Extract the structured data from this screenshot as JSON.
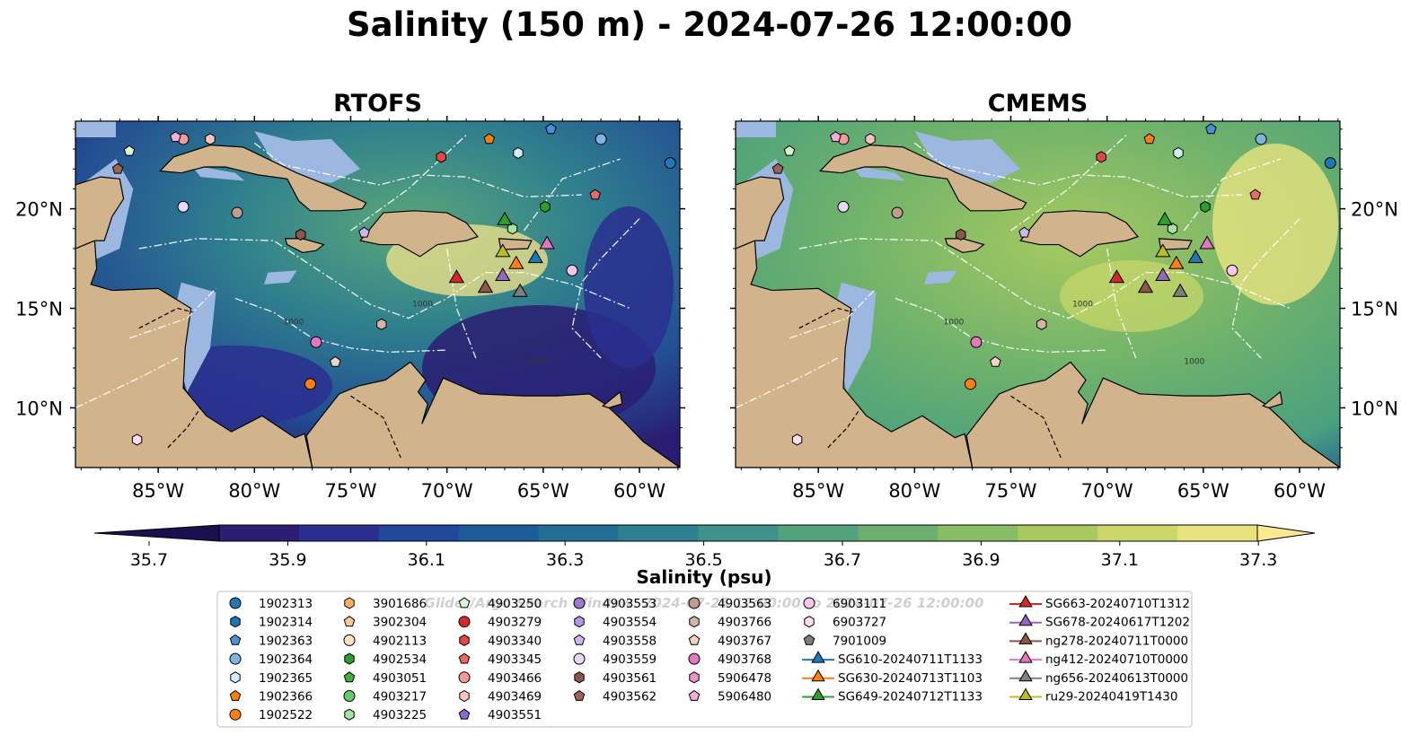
{
  "title": "Salinity (150 m) - 2024-07-26 12:00:00",
  "panels": [
    {
      "id": "rtofs",
      "title": "RTOFS"
    },
    {
      "id": "cmems",
      "title": "CMEMS"
    }
  ],
  "map": {
    "lon_ticks": [
      -85,
      -80,
      -75,
      -70,
      -65,
      -60
    ],
    "lon_labels": [
      "85°W",
      "80°W",
      "75°W",
      "70°W",
      "65°W",
      "60°W"
    ],
    "lat_ticks": [
      20,
      15,
      10
    ],
    "lat_labels": [
      "20°N",
      "15°N",
      "10°N"
    ],
    "contour_labels": [
      "1000",
      "1000",
      "1000"
    ],
    "land_color": "#d2b48c",
    "shelf_color": "#9db8e0",
    "ocean_low_color": "#2d1c6b",
    "ocean_high_color": "#fbe98f"
  },
  "colorbar": {
    "label": "Salinity (psu)",
    "ticks": [
      "35.7",
      "35.9",
      "36.1",
      "36.3",
      "36.5",
      "36.7",
      "36.9",
      "37.1",
      "37.3"
    ],
    "colors": [
      "#2a1d72",
      "#2a2f8f",
      "#21489b",
      "#1c5d97",
      "#236f93",
      "#2d8090",
      "#3f918c",
      "#52a27d",
      "#6aaf70",
      "#88bd66",
      "#a8c95f",
      "#cbd869",
      "#e9e37f"
    ]
  },
  "watermark": "Glider/Argo Search Window: 2024-07-25 12:00:00 to 2024-07-26 12:00:00",
  "legend": {
    "columns": [
      [
        {
          "label": "1902313",
          "marker": "circle",
          "color": "#1f77b4"
        },
        {
          "label": "1902314",
          "marker": "hexagon",
          "color": "#1f77b4"
        },
        {
          "label": "1902363",
          "marker": "pentagon",
          "color": "#4a90d9"
        },
        {
          "label": "1902364",
          "marker": "circle",
          "color": "#7fb3e0"
        },
        {
          "label": "1902365",
          "marker": "hexagon",
          "color": "#d5ecfb"
        },
        {
          "label": "1902366",
          "marker": "pentagon",
          "color": "#ff7f0e"
        },
        {
          "label": "1902522",
          "marker": "circle",
          "color": "#ff7f0e"
        }
      ],
      [
        {
          "label": "3901686",
          "marker": "hexagon",
          "color": "#ffae62"
        },
        {
          "label": "3902304",
          "marker": "pentagon",
          "color": "#ffc999"
        },
        {
          "label": "4902113",
          "marker": "circle",
          "color": "#ffe3c4"
        },
        {
          "label": "4902534",
          "marker": "hexagon",
          "color": "#2ca02c"
        },
        {
          "label": "4903051",
          "marker": "pentagon",
          "color": "#3cb43c"
        },
        {
          "label": "4903217",
          "marker": "circle",
          "color": "#68c968"
        },
        {
          "label": "4903225",
          "marker": "hexagon",
          "color": "#a6e3a1"
        }
      ],
      [
        {
          "label": "4903250",
          "marker": "pentagon",
          "color": "#d9f6d2"
        },
        {
          "label": "4903279",
          "marker": "circle",
          "color": "#d62728"
        },
        {
          "label": "4903340",
          "marker": "hexagon",
          "color": "#e04848"
        },
        {
          "label": "4903345",
          "marker": "pentagon",
          "color": "#ea6a6a"
        },
        {
          "label": "4903466",
          "marker": "circle",
          "color": "#f29b9b"
        },
        {
          "label": "4903469",
          "marker": "hexagon",
          "color": "#f9c4c4"
        },
        {
          "label": "4903551",
          "marker": "pentagon",
          "color": "#8c68cc"
        }
      ],
      [
        {
          "label": "4903553",
          "marker": "circle",
          "color": "#9d79d4"
        },
        {
          "label": "4903554",
          "marker": "hexagon",
          "color": "#b497e2"
        },
        {
          "label": "4903558",
          "marker": "pentagon",
          "color": "#cdb7ee"
        },
        {
          "label": "4903559",
          "marker": "circle",
          "color": "#e6d9f8"
        },
        {
          "label": "4903561",
          "marker": "hexagon",
          "color": "#8c564b"
        },
        {
          "label": "4903562",
          "marker": "pentagon",
          "color": "#9a6558"
        }
      ],
      [
        {
          "label": "4903563",
          "marker": "circle",
          "color": "#c49c8f"
        },
        {
          "label": "4903766",
          "marker": "hexagon",
          "color": "#d7b3a6"
        },
        {
          "label": "4903767",
          "marker": "pentagon",
          "color": "#f1d4c8"
        },
        {
          "label": "4903768",
          "marker": "circle",
          "color": "#e377c2"
        },
        {
          "label": "5906478",
          "marker": "hexagon",
          "color": "#e994cc"
        },
        {
          "label": "5906480",
          "marker": "pentagon",
          "color": "#f1aedc"
        }
      ],
      [
        {
          "label": "6903111",
          "marker": "circle",
          "color": "#f7c6e8"
        },
        {
          "label": "6903727",
          "marker": "hexagon",
          "color": "#fbdcf0"
        },
        {
          "label": "7901009",
          "marker": "pentagon",
          "color": "#7f7f7f"
        },
        {
          "label": "SG610-20240711T1133",
          "marker": "triangle-line",
          "color": "#1f77b4"
        },
        {
          "label": "SG630-20240713T1103",
          "marker": "triangle-line",
          "color": "#ff7f0e"
        },
        {
          "label": "SG649-20240712T1133",
          "marker": "triangle-line",
          "color": "#2ca02c"
        }
      ],
      [
        {
          "label": "SG663-20240710T1312",
          "marker": "triangle-line",
          "color": "#d62728"
        },
        {
          "label": "SG678-20240617T1202",
          "marker": "triangle-line",
          "color": "#9467bd"
        },
        {
          "label": "ng278-20240711T0000",
          "marker": "triangle-line",
          "color": "#8c564b"
        },
        {
          "label": "ng412-20240710T0000",
          "marker": "triangle-line",
          "color": "#e377c2"
        },
        {
          "label": "ng656-20240613T0000",
          "marker": "triangle-line",
          "color": "#7f7f7f"
        },
        {
          "label": "ru29-20240419T1430",
          "marker": "triangle-line",
          "color": "#bcbd22"
        }
      ]
    ]
  },
  "markers": [
    {
      "label": "1902313",
      "lon": -58.4,
      "lat": 22.3,
      "marker": "circle",
      "color": "#1f77b4"
    },
    {
      "label": "1902363",
      "lon": -64.6,
      "lat": 24.0,
      "marker": "pentagon",
      "color": "#4a90d9"
    },
    {
      "label": "1902364",
      "lon": -62.0,
      "lat": 23.5,
      "marker": "circle",
      "color": "#7fb3e0"
    },
    {
      "label": "1902365",
      "lon": -66.3,
      "lat": 22.8,
      "marker": "hexagon",
      "color": "#d5ecfb"
    },
    {
      "label": "1902366",
      "lon": -67.8,
      "lat": 23.5,
      "marker": "pentagon",
      "color": "#ff7f0e"
    },
    {
      "label": "1902522",
      "lon": -77.1,
      "lat": 11.2,
      "marker": "circle",
      "color": "#ff7f0e"
    },
    {
      "label": "4902534",
      "lon": -64.9,
      "lat": 20.1,
      "marker": "hexagon",
      "color": "#2ca02c"
    },
    {
      "label": "4903225",
      "lon": -66.6,
      "lat": 19.0,
      "marker": "hexagon",
      "color": "#a6e3a1"
    },
    {
      "label": "4903250",
      "lon": -86.5,
      "lat": 22.9,
      "marker": "pentagon",
      "color": "#d9f6d2"
    },
    {
      "label": "4903340",
      "lon": -70.3,
      "lat": 22.6,
      "marker": "hexagon",
      "color": "#e04848"
    },
    {
      "label": "4903345",
      "lon": -62.3,
      "lat": 20.7,
      "marker": "pentagon",
      "color": "#ea6a6a"
    },
    {
      "label": "4903466",
      "lon": -83.7,
      "lat": 23.5,
      "marker": "circle",
      "color": "#f29b9b"
    },
    {
      "label": "4903469",
      "lon": -82.3,
      "lat": 23.5,
      "marker": "hexagon",
      "color": "#f9c4c4"
    },
    {
      "label": "4903558",
      "lon": -74.3,
      "lat": 18.8,
      "marker": "pentagon",
      "color": "#cdb7ee"
    },
    {
      "label": "4903559",
      "lon": -83.7,
      "lat": 20.1,
      "marker": "circle",
      "color": "#e6d9f8"
    },
    {
      "label": "4903561",
      "lon": -77.6,
      "lat": 18.7,
      "marker": "hexagon",
      "color": "#8c564b"
    },
    {
      "label": "4903562",
      "lon": -87.1,
      "lat": 22.0,
      "marker": "pentagon",
      "color": "#9a6558"
    },
    {
      "label": "4903563",
      "lon": -80.9,
      "lat": 19.8,
      "marker": "circle",
      "color": "#c49c8f"
    },
    {
      "label": "4903766",
      "lon": -73.4,
      "lat": 14.2,
      "marker": "hexagon",
      "color": "#d7b3a6"
    },
    {
      "label": "4903767",
      "lon": -75.8,
      "lat": 12.3,
      "marker": "pentagon",
      "color": "#f1d4c8"
    },
    {
      "label": "4903768",
      "lon": -76.8,
      "lat": 13.3,
      "marker": "circle",
      "color": "#e377c2"
    },
    {
      "label": "5906480",
      "lon": -84.1,
      "lat": 23.6,
      "marker": "pentagon",
      "color": "#f1aedc"
    },
    {
      "label": "6903111",
      "lon": -63.5,
      "lat": 16.9,
      "marker": "circle",
      "color": "#f7c6e8"
    },
    {
      "label": "6903727",
      "lon": -86.1,
      "lat": 8.4,
      "marker": "hexagon",
      "color": "#fbdcf0"
    },
    {
      "label": "SG649-20240712T1133",
      "lon": -67.0,
      "lat": 19.4,
      "marker": "triangle",
      "color": "#2ca02c"
    },
    {
      "label": "ru29-20240419T1430",
      "lon": -67.1,
      "lat": 17.8,
      "marker": "triangle",
      "color": "#bcbd22"
    },
    {
      "label": "SG663-20240710T1312",
      "lon": -69.5,
      "lat": 16.5,
      "marker": "triangle",
      "color": "#d62728"
    },
    {
      "label": "ng278-20240711T0000",
      "lon": -68.0,
      "lat": 16.0,
      "marker": "triangle",
      "color": "#8c564b"
    },
    {
      "label": "SG678-20240617T1202",
      "lon": -67.1,
      "lat": 16.6,
      "marker": "triangle",
      "color": "#9467bd"
    },
    {
      "label": "SG630-20240713T1103",
      "lon": -66.4,
      "lat": 17.2,
      "marker": "triangle",
      "color": "#ff7f0e"
    },
    {
      "label": "ng656-20240613T0000",
      "lon": -66.2,
      "lat": 15.8,
      "marker": "triangle",
      "color": "#7f7f7f"
    },
    {
      "label": "SG610-20240711T1133",
      "lon": -65.4,
      "lat": 17.5,
      "marker": "triangle",
      "color": "#1f77b4"
    },
    {
      "label": "ng412-20240710T0000",
      "lon": -64.8,
      "lat": 18.2,
      "marker": "triangle",
      "color": "#e377c2"
    }
  ]
}
